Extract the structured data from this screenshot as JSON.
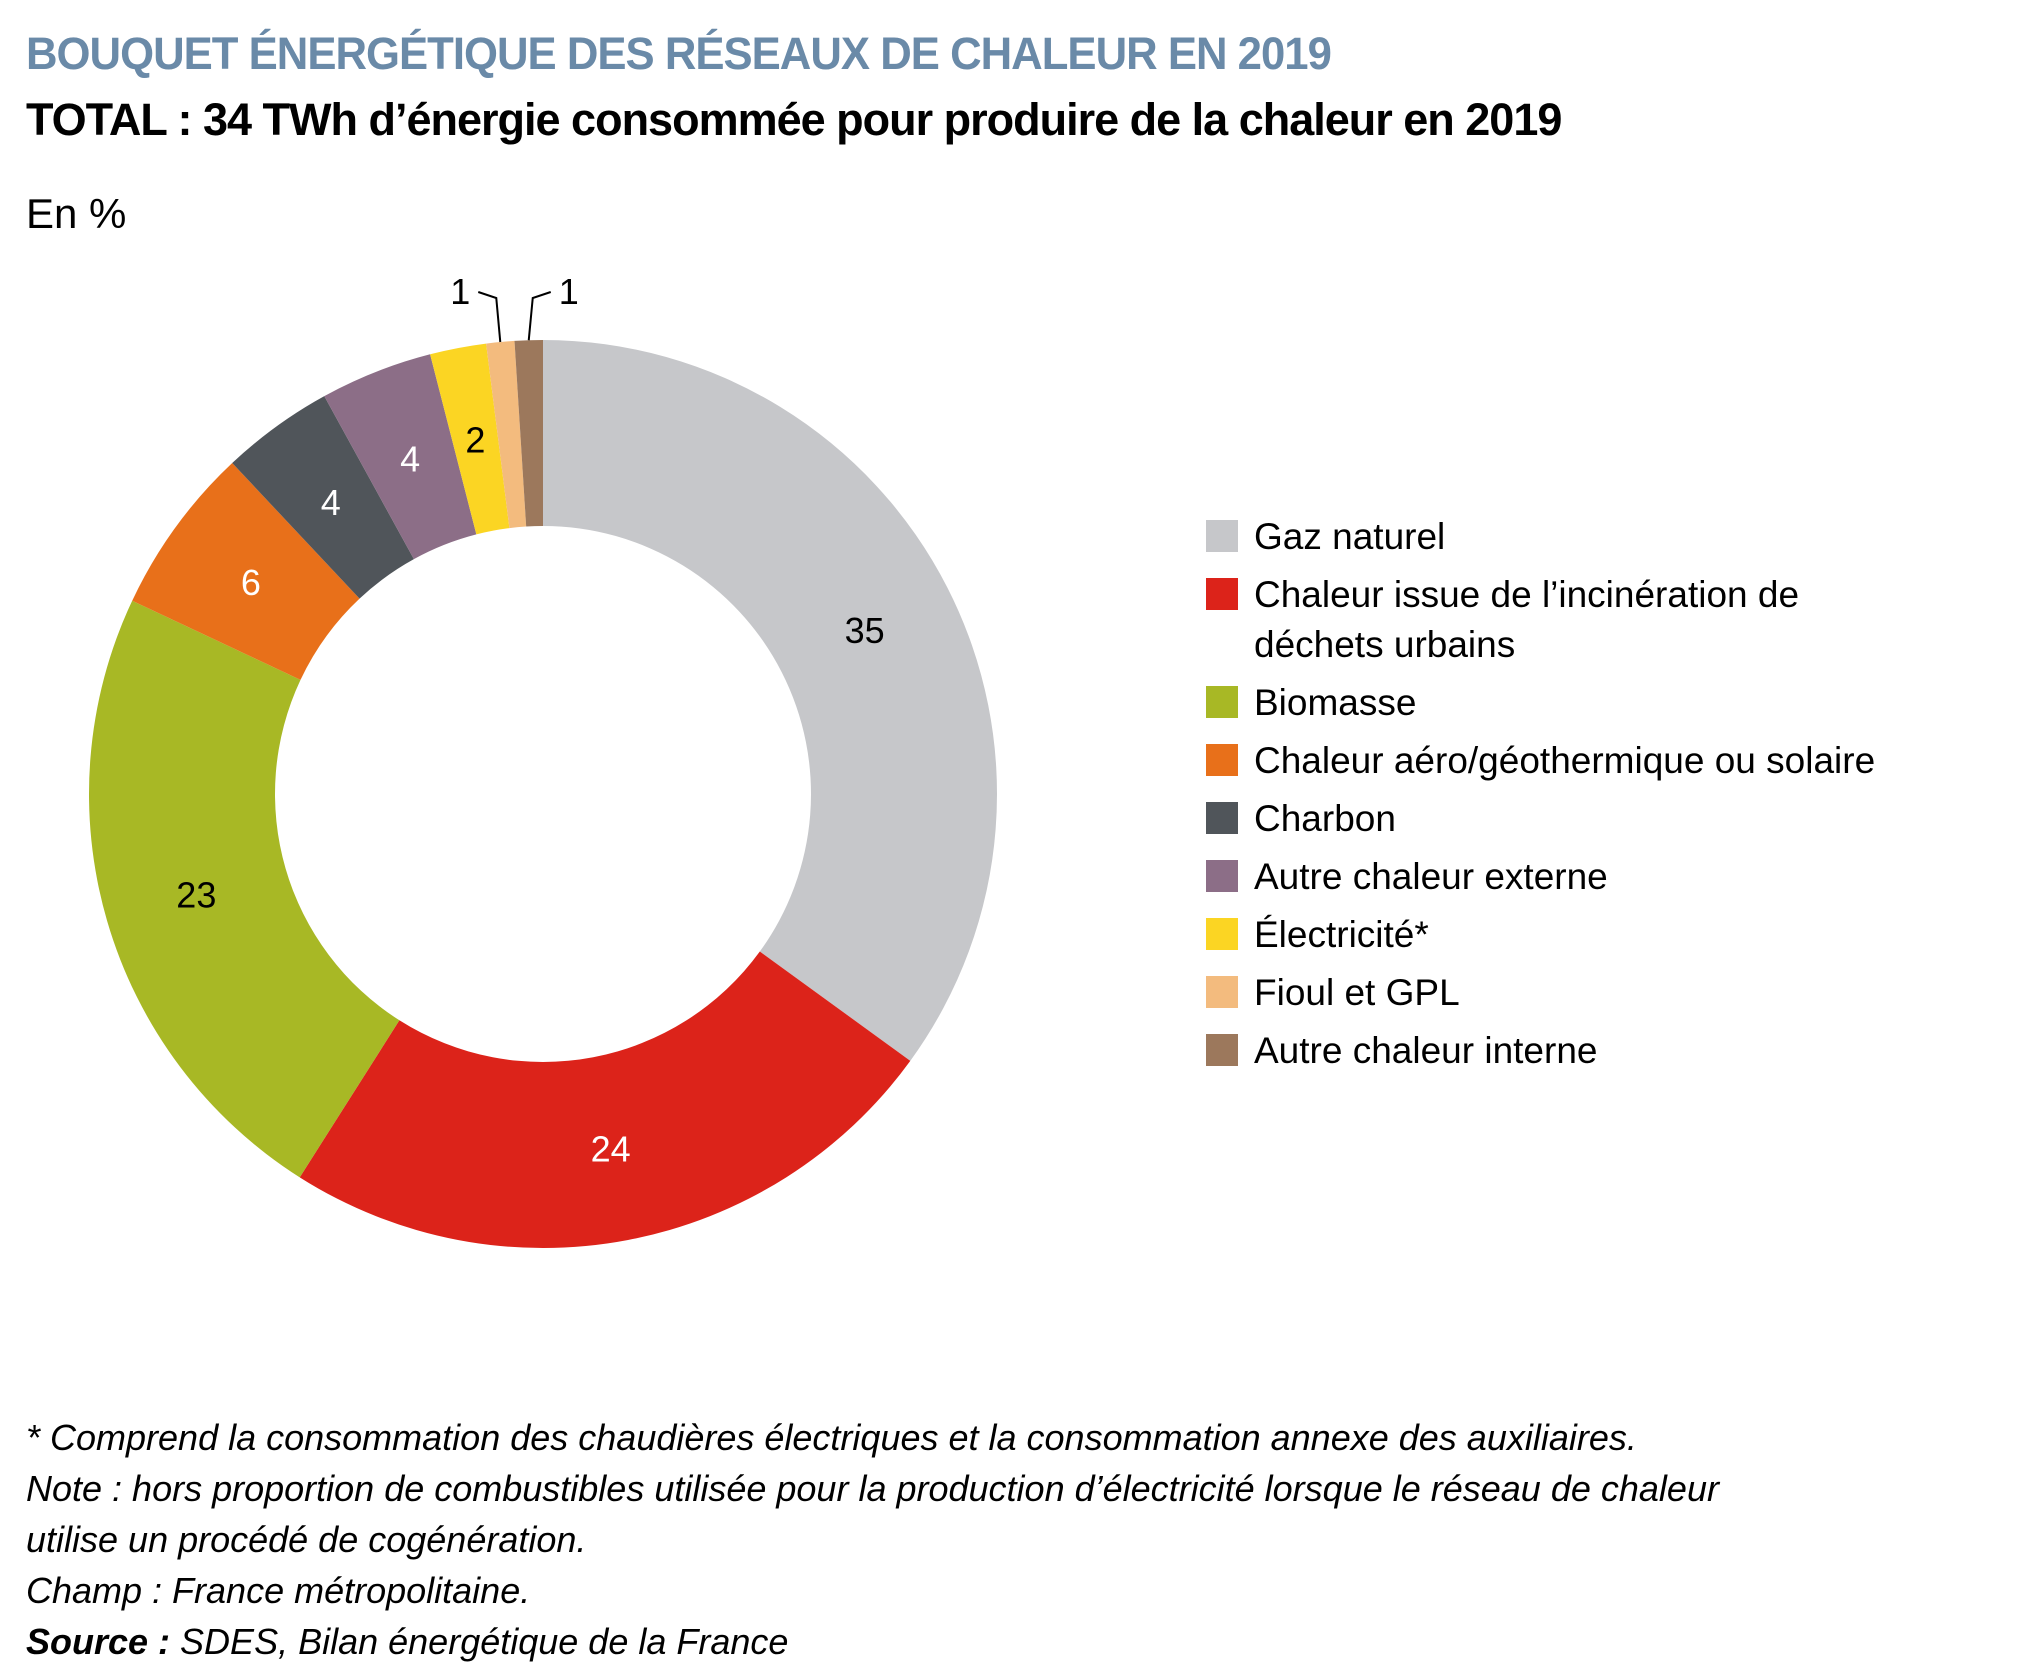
{
  "title": "BOUQUET ÉNERGÉTIQUE DES RÉSEAUX DE CHALEUR EN 2019",
  "subtitle": "TOTAL : 34 TWh d’énergie consommée pour produire de la chaleur en 2019",
  "unit": "En %",
  "chart_data": {
    "type": "pie",
    "donut": true,
    "start": "top",
    "direction": "clockwise",
    "categories": [
      "Gaz naturel",
      "Chaleur issue de l’incinération de déchets urbains",
      "Biomasse",
      "Chaleur aéro/géothermique ou solaire",
      "Charbon",
      "Autre chaleur externe",
      "Électricité*",
      "Fioul et GPL",
      "Autre chaleur interne"
    ],
    "values": [
      35,
      24,
      23,
      6,
      4,
      4,
      2,
      1,
      1
    ],
    "labels": [
      "35",
      "24",
      "23",
      "6",
      "4",
      "4",
      "2",
      "1",
      "1"
    ],
    "colors": [
      "#c6c7ca",
      "#dc231a",
      "#a8b825",
      "#e8701a",
      "#50555a",
      "#8c6e87",
      "#fbd523",
      "#f3bb7e",
      "#9c785c"
    ],
    "label_colors": [
      "#000000",
      "#ffffff",
      "#000000",
      "#ffffff",
      "#ffffff",
      "#ffffff",
      "#000000",
      "#000000",
      "#000000"
    ],
    "legend_placement": "right"
  },
  "notes": {
    "line1": "* Comprend la consommation des chaudières électriques et la consommation annexe des auxiliaires.",
    "line2": "Note : hors proportion de combustibles utilisée pour la production d’électricité lorsque le réseau de chaleur",
    "line3": "utilise un procédé de cogénération.",
    "line4": "Champ : France métropolitaine.",
    "source_label": "Source :",
    "source_text": " SDES, Bilan énergétique de la France"
  }
}
